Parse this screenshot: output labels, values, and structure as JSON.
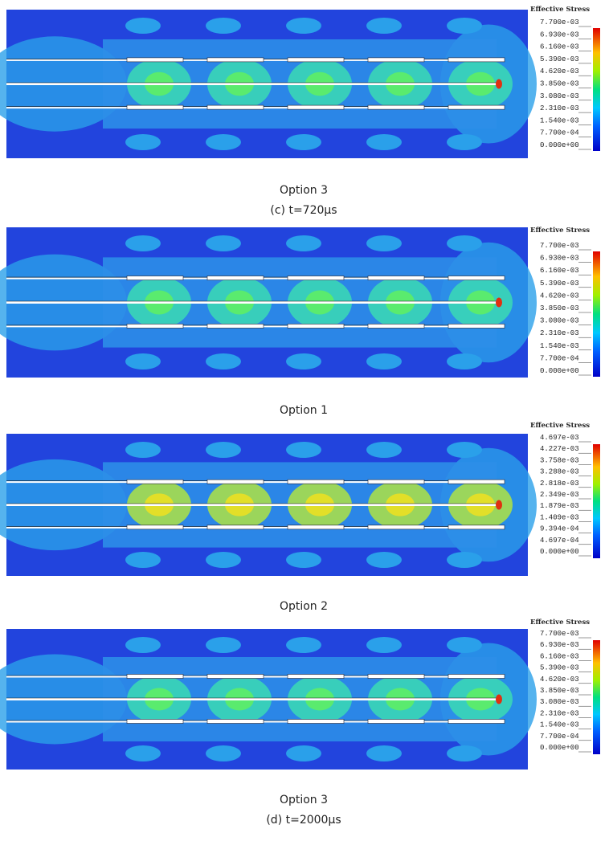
{
  "panels": [
    {
      "legend_title": "Effective Stress",
      "legend_labels": [
        "7.700e-03",
        "6.930e-03",
        "6.160e-03",
        "5.390e-03",
        "4.620e-03",
        "3.850e-03",
        "3.080e-03",
        "2.310e-03",
        "1.540e-03",
        "7.700e-04",
        "0.000e+00"
      ]
    },
    {
      "legend_title": "Effective Stress",
      "legend_labels": [
        "7.700e-03",
        "6.930e-03",
        "6.160e-03",
        "5.390e-03",
        "4.620e-03",
        "3.850e-03",
        "3.080e-03",
        "2.310e-03",
        "1.540e-03",
        "7.700e-04",
        "0.000e+00"
      ]
    },
    {
      "legend_title": "Effective Stress",
      "legend_labels": [
        "4.697e-03",
        "4.227e-03",
        "3.758e-03",
        "3.288e-03",
        "2.818e-03",
        "2.349e-03",
        "1.879e-03",
        "1.409e-03",
        "9.394e-04",
        "4.697e-04",
        "0.000e+00"
      ]
    },
    {
      "legend_title": "Effective Stress",
      "legend_labels": [
        "7.700e-03",
        "6.930e-03",
        "6.160e-03",
        "5.390e-03",
        "4.620e-03",
        "3.850e-03",
        "3.080e-03",
        "2.310e-03",
        "1.540e-03",
        "7.700e-04",
        "0.000e+00"
      ]
    }
  ],
  "captions": [
    "Option 3",
    "(c) t=720μs",
    "Option 1",
    "Option 2",
    "Option 3",
    "(d) t=2000μs"
  ]
}
